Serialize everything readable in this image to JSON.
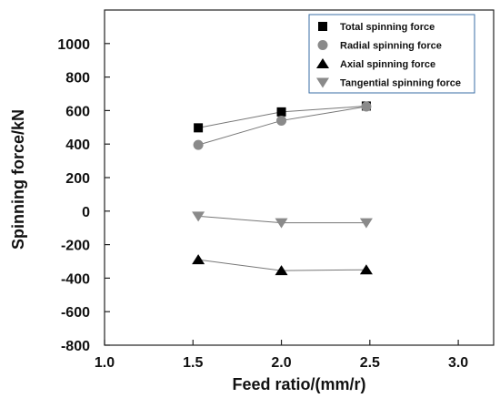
{
  "chart_data": {
    "type": "line",
    "xlabel": "Feed ratio/(mm/r)",
    "ylabel": "Spinning force/kN",
    "xlim": [
      1.0,
      3.2
    ],
    "ylim": [
      -800,
      1200
    ],
    "x_ticks": [
      "1.0",
      "1.5",
      "2.0",
      "2.5",
      "3.0"
    ],
    "y_ticks": [
      "1000",
      "800",
      "600",
      "400",
      "200",
      "0",
      "-200",
      "-400",
      "-600",
      "-800"
    ],
    "grid": false,
    "legend_position": "top-right",
    "series": [
      {
        "name": "Total spinning force",
        "marker": "square",
        "color": "#000000",
        "x": [
          1.53,
          2.0,
          2.48
        ],
        "y": [
          497,
          592,
          627
        ]
      },
      {
        "name": "Radial spinning force",
        "marker": "circle",
        "color": "#8a8a8a",
        "x": [
          1.53,
          2.0,
          2.48
        ],
        "y": [
          395,
          540,
          624
        ]
      },
      {
        "name": "Axial spinning force",
        "marker": "triangle-up",
        "color": "#000000",
        "x": [
          1.53,
          2.0,
          2.48
        ],
        "y": [
          -290,
          -355,
          -350
        ]
      },
      {
        "name": "Tangential spinning force",
        "marker": "triangle-down",
        "color": "#8a8a8a",
        "x": [
          1.53,
          2.0,
          2.48
        ],
        "y": [
          -30,
          -70,
          -70
        ]
      }
    ]
  }
}
